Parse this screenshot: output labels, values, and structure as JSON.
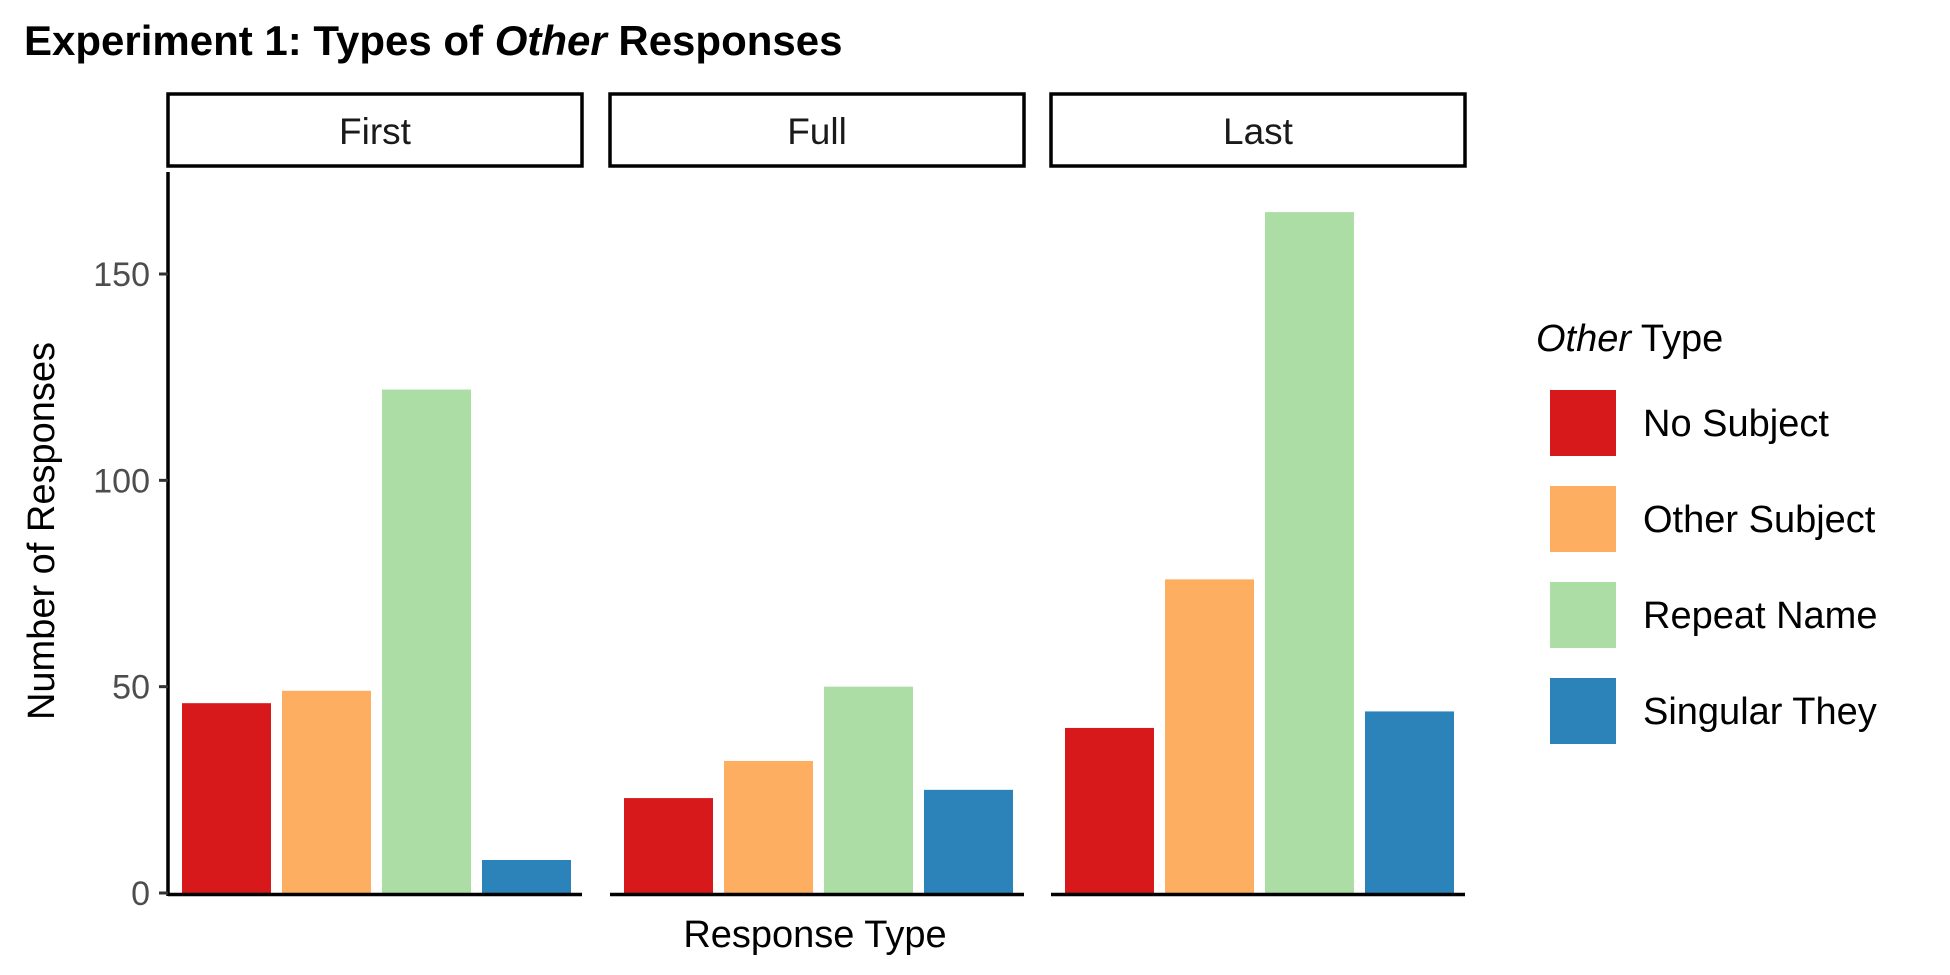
{
  "chart_data": {
    "type": "bar",
    "title": {
      "prefix": "Experiment 1: Types of ",
      "italic": "Other",
      "suffix": " Responses"
    },
    "xlabel": "Response Type",
    "ylabel": "Number of Responses",
    "ylim": [
      0,
      175
    ],
    "yticks": [
      0,
      50,
      100,
      150
    ],
    "grid": false,
    "legend_position": "right",
    "legend_title": {
      "italic": "Other",
      "suffix": " Type"
    },
    "facets": [
      "First",
      "Full",
      "Last"
    ],
    "series": [
      {
        "name": "No Subject",
        "color": "#D7191C",
        "values": [
          46,
          23,
          40
        ]
      },
      {
        "name": "Other Subject",
        "color": "#FDAE61",
        "values": [
          49,
          32,
          76
        ]
      },
      {
        "name": "Repeat Name",
        "color": "#ABDDA4",
        "values": [
          122,
          50,
          165
        ]
      },
      {
        "name": "Singular They",
        "color": "#2B83BA",
        "values": [
          8,
          25,
          44
        ]
      }
    ]
  }
}
